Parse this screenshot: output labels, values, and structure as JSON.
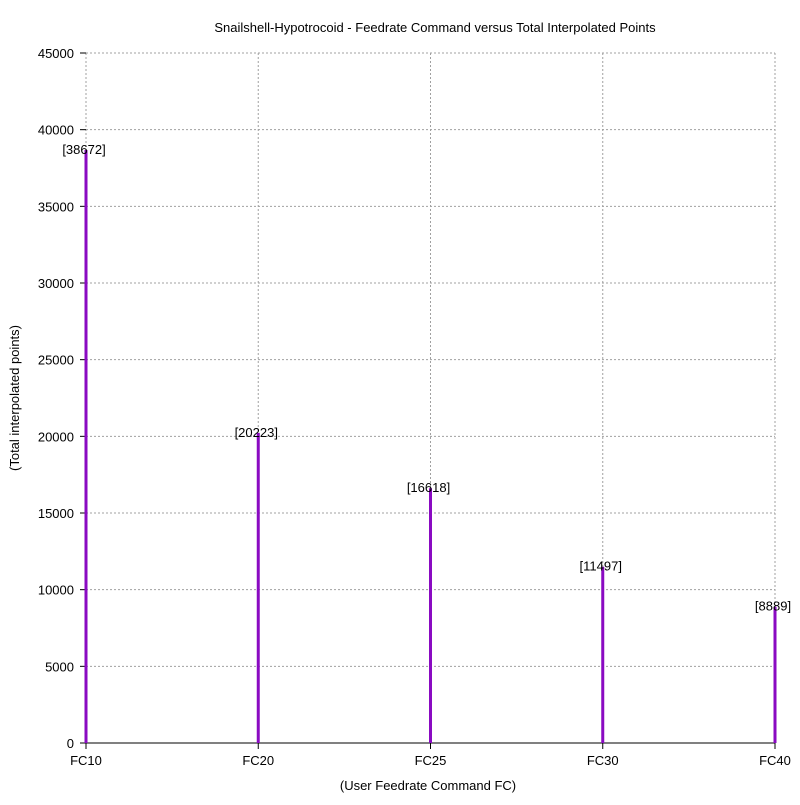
{
  "chart_data": {
    "type": "bar",
    "title": "Snailshell-Hypotrocoid - Feedrate Command versus Total Interpolated Points",
    "xlabel": "(User Feedrate Command FC)",
    "ylabel": "(Total interpolated points)",
    "categories": [
      "FC10",
      "FC20",
      "FC25",
      "FC30",
      "FC40"
    ],
    "values": [
      38672,
      20223,
      16618,
      11497,
      8889
    ],
    "data_labels": [
      "[38672]",
      "[20223]",
      "[16618]",
      "[11497]",
      "[8889]"
    ],
    "ylim": [
      0,
      45000
    ],
    "yticks": [
      0,
      5000,
      10000,
      15000,
      20000,
      25000,
      30000,
      35000,
      40000,
      45000
    ],
    "grid": true,
    "bar_color": "#8a0ac2",
    "style": "impulses"
  }
}
